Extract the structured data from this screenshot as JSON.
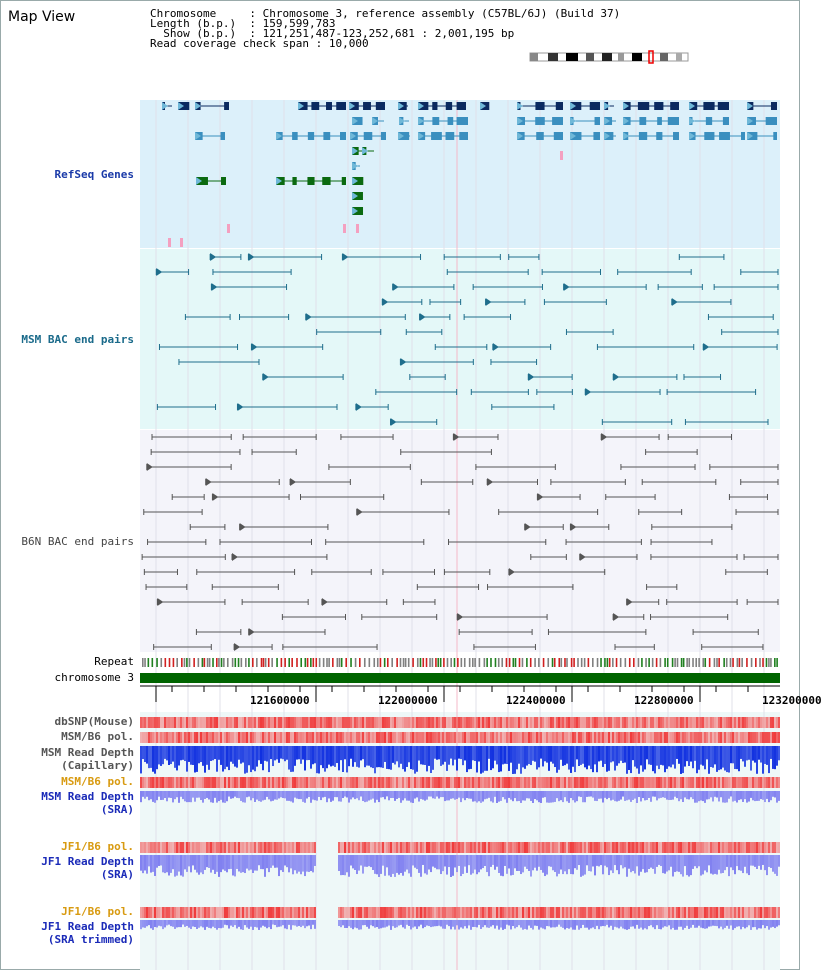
{
  "title": "Map View",
  "info": {
    "chromosome_key": "Chromosome",
    "chromosome_val": "Chromosome 3, reference assembly (C57BL/6J) (Build 37)",
    "length_key": "Length (b.p.)",
    "length_val": "159,599,783",
    "show_key": "Show (b.p.)",
    "show_val": "121,251,487-123,252,681 : 2,001,195 bp",
    "coverage_key": "Read coverage check span",
    "coverage_val": "10,000"
  },
  "tracks": {
    "refseq": "RefSeq Genes",
    "msm_bac": "MSM BAC end pairs",
    "b6n_bac": "B6N BAC end pairs",
    "repeat": "Repeat",
    "chromosome": "chromosome 3",
    "dbsnp": "dbSNP(Mouse)",
    "msm_b6_pol_1": "MSM/B6 pol.",
    "msm_depth_cap_1": "MSM Read Depth",
    "msm_depth_cap_2": "(Capillary)",
    "msm_b6_pol_2": "MSM/B6 pol.",
    "msm_depth_sra_1": "MSM Read Depth",
    "msm_depth_sra_2": "(SRA)",
    "jf1_pol_1": "JF1/B6 pol.",
    "jf1_depth_1": "JF1 Read Depth",
    "jf1_depth_2": "(SRA)",
    "jf1_pol_2": "JF1/B6 pol.",
    "jf1_trim_1": "JF1 Read Depth",
    "jf1_trim_2": "(SRA trimmed)"
  },
  "axis": {
    "ticks": [
      "121600000",
      "122000000",
      "122400000",
      "122800000",
      "123200000"
    ]
  },
  "colors": {
    "refseq_bg": "#dcf0fa",
    "msm_bg": "#e4f8f8",
    "b6n_bg": "#f4f4fa",
    "gene_dark": "#0b2a60",
    "gene_mid": "#3a8fbf",
    "gene_green": "#0b6a10",
    "msm_line": "#1f6e8c",
    "b6n_line": "#555555",
    "chrom_bar": "#006400",
    "depth_cap": "#1030e0",
    "depth_sra": "#8080f0",
    "pol": "#e83030"
  }
}
